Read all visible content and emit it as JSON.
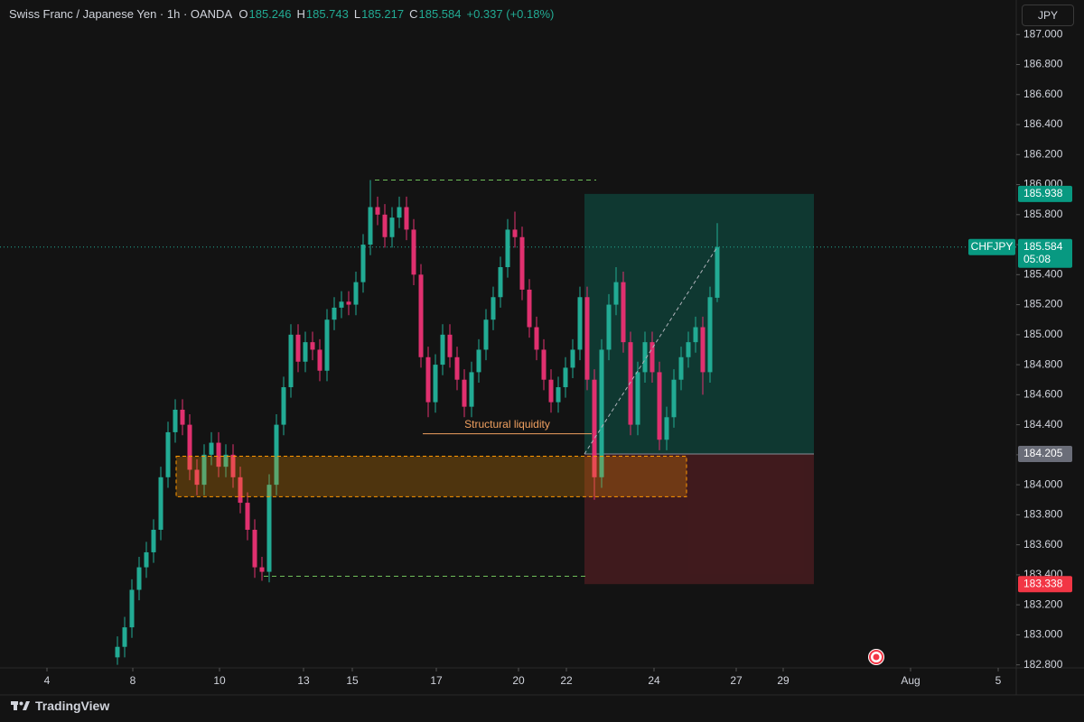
{
  "chart_data": {
    "type": "candlestick",
    "title": "Swiss Franc / Japanese Yen · 1h · OANDA",
    "ohlc_labels": [
      "O",
      "H",
      "L",
      "C"
    ],
    "change": "+0.337 (+0.18%)",
    "currency": "JPY",
    "symbol": "CHFJPY",
    "countdown": "05:08",
    "branding": "TradingView",
    "up_color": "#22ab94",
    "down_color": "#e0306f",
    "xlim": [
      0,
      562.5
    ],
    "ylim": [
      182.78,
      187.23
    ],
    "xticks": [
      {
        "value": 26,
        "label": "4"
      },
      {
        "value": 73.5,
        "label": "8"
      },
      {
        "value": 121.5,
        "label": "10"
      },
      {
        "value": 168,
        "label": "13"
      },
      {
        "value": 195,
        "label": "15"
      },
      {
        "value": 241.5,
        "label": "17"
      },
      {
        "value": 287,
        "label": "20"
      },
      {
        "value": 313.5,
        "label": "22"
      },
      {
        "value": 362,
        "label": "24"
      },
      {
        "value": 407.5,
        "label": "27"
      },
      {
        "value": 433.5,
        "label": "29"
      },
      {
        "value": 504,
        "label": "Aug"
      },
      {
        "value": 552.5,
        "label": "5"
      }
    ],
    "yticks": [
      {
        "value": 182.8,
        "label": "182.800"
      },
      {
        "value": 183.0,
        "label": "183.000"
      },
      {
        "value": 183.2,
        "label": "183.200"
      },
      {
        "value": 183.4,
        "label": "183.400"
      },
      {
        "value": 183.6,
        "label": "183.600"
      },
      {
        "value": 183.8,
        "label": "183.800"
      },
      {
        "value": 184.0,
        "label": "184.000"
      },
      {
        "value": 184.2,
        "label": "184.200"
      },
      {
        "value": 184.4,
        "label": "184.400"
      },
      {
        "value": 184.6,
        "label": "184.600"
      },
      {
        "value": 184.8,
        "label": "184.800"
      },
      {
        "value": 185.0,
        "label": "185.000"
      },
      {
        "value": 185.2,
        "label": "185.200"
      },
      {
        "value": 185.4,
        "label": "185.400"
      },
      {
        "value": 185.6,
        "label": "185.600"
      },
      {
        "value": 185.8,
        "label": "185.800"
      },
      {
        "value": 186.0,
        "label": "186.000"
      },
      {
        "value": 186.2,
        "label": "186.200"
      },
      {
        "value": 186.4,
        "label": "186.400"
      },
      {
        "value": 186.6,
        "label": "186.600"
      },
      {
        "value": 186.8,
        "label": "186.800"
      },
      {
        "value": 187.0,
        "label": "187.000"
      }
    ],
    "x": [
      65,
      69,
      73,
      77,
      81,
      85,
      89,
      93,
      97,
      101,
      105,
      109,
      113,
      117,
      121,
      125,
      129,
      133,
      137,
      141,
      145,
      149,
      153,
      157,
      161,
      165,
      169,
      173,
      177,
      181,
      185,
      189,
      193,
      197,
      201,
      205,
      209,
      213,
      217,
      221,
      225,
      229,
      233,
      237,
      241,
      245,
      249,
      253,
      257,
      261,
      265,
      269,
      273,
      277,
      281,
      285,
      289,
      293,
      297,
      301,
      305,
      309,
      313,
      317,
      321,
      325,
      329,
      333,
      337,
      341,
      345,
      349,
      353,
      357,
      361,
      365,
      369,
      373,
      377,
      381,
      385,
      389,
      393,
      397
    ],
    "open": [
      182.85,
      182.92,
      183.05,
      183.3,
      183.45,
      183.55,
      183.7,
      184.05,
      184.35,
      184.5,
      184.4,
      184.1,
      184.0,
      184.2,
      184.28,
      184.12,
      184.2,
      184.05,
      183.88,
      183.7,
      183.45,
      183.42,
      184.0,
      184.4,
      184.65,
      185.0,
      184.82,
      184.95,
      184.9,
      184.76,
      185.1,
      185.18,
      185.22,
      185.2,
      185.35,
      185.6,
      185.85,
      185.8,
      185.65,
      185.78,
      185.85,
      185.7,
      185.4,
      184.85,
      184.55,
      184.8,
      185.0,
      184.85,
      184.7,
      184.52,
      184.75,
      184.9,
      185.1,
      185.25,
      185.45,
      185.7,
      185.65,
      185.3,
      185.05,
      184.9,
      184.7,
      184.55,
      184.65,
      184.78,
      184.9,
      185.25,
      184.7,
      184.05,
      184.9,
      185.2,
      185.35,
      184.95,
      184.4,
      184.75,
      184.95,
      184.75,
      184.3,
      184.45,
      184.7,
      184.85,
      184.95,
      185.05,
      184.75,
      185.246
    ],
    "high": [
      182.99,
      183.12,
      183.37,
      183.52,
      183.62,
      183.77,
      184.12,
      184.42,
      184.57,
      184.57,
      184.47,
      184.17,
      184.27,
      184.35,
      184.35,
      184.27,
      184.27,
      184.12,
      183.95,
      183.77,
      183.52,
      184.07,
      184.47,
      184.72,
      185.07,
      185.07,
      185.02,
      185.02,
      184.97,
      185.17,
      185.25,
      185.29,
      185.29,
      185.42,
      185.67,
      186.03,
      185.92,
      185.87,
      185.85,
      185.92,
      185.92,
      185.77,
      185.47,
      184.92,
      184.87,
      185.07,
      185.07,
      184.92,
      184.77,
      184.82,
      184.97,
      185.17,
      185.32,
      185.52,
      185.77,
      185.82,
      185.72,
      185.37,
      185.12,
      184.97,
      184.77,
      184.72,
      184.85,
      184.97,
      185.32,
      185.32,
      184.77,
      184.97,
      185.27,
      185.45,
      185.42,
      185.02,
      184.82,
      185.02,
      185.02,
      184.82,
      184.52,
      184.77,
      184.92,
      185.02,
      185.12,
      185.12,
      185.32,
      185.743
    ],
    "low": [
      182.8,
      182.85,
      182.98,
      183.23,
      183.38,
      183.48,
      183.63,
      183.98,
      184.28,
      184.33,
      184.03,
      183.93,
      183.93,
      184.13,
      184.05,
      184.05,
      183.98,
      183.81,
      183.63,
      183.38,
      183.36,
      183.35,
      183.93,
      184.33,
      184.58,
      184.75,
      184.75,
      184.83,
      184.69,
      184.69,
      185.03,
      185.11,
      185.13,
      185.13,
      185.28,
      185.53,
      185.73,
      185.58,
      185.58,
      185.71,
      185.63,
      185.33,
      184.78,
      184.45,
      184.48,
      184.73,
      184.78,
      184.63,
      184.45,
      184.45,
      184.68,
      184.83,
      185.03,
      185.18,
      185.38,
      185.58,
      185.23,
      184.98,
      184.83,
      184.63,
      184.48,
      184.48,
      184.58,
      184.71,
      184.83,
      184.63,
      183.9,
      183.98,
      184.83,
      185.13,
      184.88,
      184.33,
      184.33,
      184.68,
      184.68,
      184.23,
      184.23,
      184.38,
      184.63,
      184.78,
      184.88,
      184.6,
      184.68,
      185.217
    ],
    "close": [
      182.92,
      183.05,
      183.3,
      183.45,
      183.55,
      183.7,
      184.05,
      184.35,
      184.5,
      184.4,
      184.1,
      184.0,
      184.2,
      184.28,
      184.12,
      184.2,
      184.05,
      183.88,
      183.7,
      183.45,
      183.42,
      184.0,
      184.4,
      184.65,
      185.0,
      184.82,
      184.95,
      184.9,
      184.76,
      185.1,
      185.18,
      185.22,
      185.2,
      185.35,
      185.6,
      185.85,
      185.8,
      185.65,
      185.78,
      185.85,
      185.7,
      185.4,
      184.85,
      184.55,
      184.8,
      185.0,
      184.85,
      184.7,
      184.52,
      184.75,
      184.9,
      185.1,
      185.25,
      185.45,
      185.7,
      185.65,
      185.3,
      185.05,
      184.9,
      184.7,
      184.55,
      184.65,
      184.78,
      184.9,
      185.25,
      184.7,
      184.05,
      184.9,
      185.2,
      185.35,
      184.95,
      184.4,
      184.75,
      184.95,
      184.75,
      184.3,
      184.45,
      184.7,
      184.85,
      184.95,
      185.05,
      184.75,
      185.25,
      185.584
    ],
    "position": {
      "x": [
        323.5,
        450.5
      ],
      "entry": 184.205,
      "target": 185.938,
      "stop": 183.338
    },
    "zone": {
      "x": [
        97.5,
        380
      ],
      "y": [
        183.92,
        184.19
      ]
    },
    "range_high": {
      "x": [
        207.5,
        330
      ],
      "y": 186.03
    },
    "range_low": {
      "x": [
        146,
        326
      ],
      "y": 183.39
    },
    "liquidity": {
      "x": [
        234,
        327.5
      ],
      "y": 184.34,
      "label": "Structural liquidity"
    }
  }
}
